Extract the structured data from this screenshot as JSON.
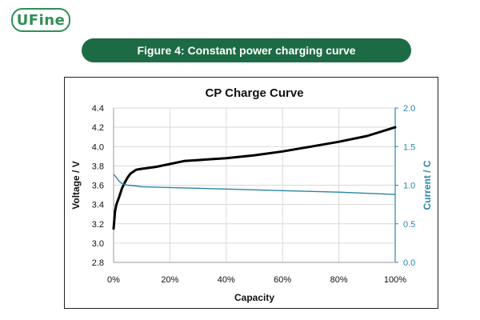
{
  "brand": {
    "logo_text": "UFine"
  },
  "banner": {
    "title": "Figure 4: Constant power charging curve"
  },
  "colors": {
    "brand_green": "#1d6b45",
    "voltage_line": "#000000",
    "current_line": "#2a85a8",
    "right_axis": "#2a85a8"
  },
  "chart_data": {
    "type": "line",
    "title": "CP Charge Curve",
    "xlabel": "Capacity",
    "ylabel": "Voltage / V",
    "y2label": "Current / C",
    "x_tick_labels": [
      "0%",
      "20%",
      "40%",
      "60%",
      "80%",
      "100%"
    ],
    "xlim": [
      0,
      100
    ],
    "ylim": [
      2.8,
      4.4
    ],
    "y_tick_labels": [
      "4.4",
      "4.2",
      "4.0",
      "3.8",
      "3.6",
      "3.4",
      "3.2",
      "3.0",
      "2.8"
    ],
    "y2lim": [
      0.0,
      2.0
    ],
    "y2_tick_labels": [
      "2.0",
      "1.5",
      "1.0",
      "0.5",
      "0.0"
    ],
    "grid": true,
    "series": [
      {
        "axis": "left",
        "x": [
          0,
          0.5,
          1,
          2,
          3,
          4,
          5,
          6,
          7,
          8,
          10,
          15,
          20,
          25,
          30,
          40,
          50,
          60,
          70,
          80,
          90,
          100
        ],
        "y": [
          3.15,
          3.33,
          3.4,
          3.48,
          3.57,
          3.63,
          3.68,
          3.72,
          3.74,
          3.76,
          3.77,
          3.79,
          3.82,
          3.85,
          3.86,
          3.88,
          3.91,
          3.95,
          4.0,
          4.05,
          4.11,
          4.2
        ]
      },
      {
        "axis": "right",
        "x": [
          0,
          1,
          2,
          3,
          5,
          8,
          10,
          20,
          40,
          60,
          80,
          100
        ],
        "y": [
          1.14,
          1.1,
          1.05,
          1.02,
          1.0,
          0.99,
          0.98,
          0.97,
          0.95,
          0.93,
          0.91,
          0.88
        ]
      }
    ]
  }
}
